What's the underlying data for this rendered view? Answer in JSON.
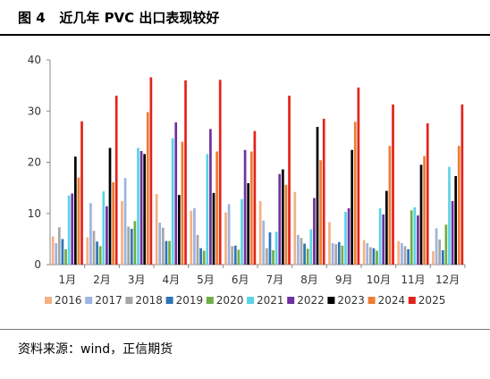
{
  "figure": {
    "label": "图 4",
    "title": "近几年 PVC 出口表现较好"
  },
  "source": "资料来源：wind，正信期货",
  "chart_data": {
    "type": "bar",
    "categories": [
      "1月",
      "2月",
      "3月",
      "4月",
      "5月",
      "6月",
      "7月",
      "8月",
      "9月",
      "10月",
      "11月",
      "12月"
    ],
    "ylim": [
      0,
      40
    ],
    "yticks": [
      0,
      10,
      20,
      30,
      40
    ],
    "grid": false,
    "legend_position": "bottom",
    "series": [
      {
        "name": "2016",
        "color": "#F4B183",
        "values": [
          5.5,
          5.3,
          12.4,
          13.8,
          10.5,
          10.2,
          12.4,
          14.2,
          8.3,
          4.8,
          4.6,
          2.6
        ]
      },
      {
        "name": "2017",
        "color": "#9DB3E0",
        "values": [
          4.2,
          12.0,
          16.9,
          8.2,
          11.0,
          11.8,
          8.6,
          5.8,
          4.2,
          4.2,
          4.2,
          7.1
        ]
      },
      {
        "name": "2018",
        "color": "#A6A6A6",
        "values": [
          7.3,
          6.6,
          7.4,
          7.2,
          5.8,
          3.6,
          3.2,
          5.2,
          4.0,
          3.4,
          3.6,
          4.9
        ]
      },
      {
        "name": "2019",
        "color": "#2E75B6",
        "values": [
          5.0,
          4.5,
          7.0,
          4.6,
          3.2,
          3.7,
          6.3,
          4.1,
          4.4,
          3.2,
          3.0,
          2.8
        ]
      },
      {
        "name": "2020",
        "color": "#70AD47",
        "values": [
          3.0,
          3.6,
          8.5,
          4.6,
          2.7,
          2.9,
          2.8,
          3.1,
          3.7,
          2.7,
          10.6,
          7.8
        ]
      },
      {
        "name": "2021",
        "color": "#5BD3E8",
        "values": [
          13.5,
          14.3,
          22.8,
          24.7,
          21.6,
          12.8,
          6.4,
          6.9,
          10.3,
          11.0,
          11.2,
          19.1
        ]
      },
      {
        "name": "2022",
        "color": "#7030A0",
        "values": [
          13.9,
          11.4,
          22.2,
          27.8,
          26.5,
          22.4,
          17.7,
          13.0,
          11.0,
          9.8,
          9.6,
          12.4
        ]
      },
      {
        "name": "2023",
        "color": "#000000",
        "values": [
          21.1,
          22.8,
          21.6,
          13.6,
          14.0,
          15.9,
          18.6,
          26.9,
          22.4,
          14.4,
          19.5,
          17.3
        ]
      },
      {
        "name": "2024",
        "color": "#ED7D31",
        "values": [
          17.0,
          16.1,
          29.8,
          24.0,
          22.1,
          22.1,
          15.6,
          20.4,
          27.9,
          23.2,
          21.2,
          23.2
        ]
      },
      {
        "name": "2025",
        "color": "#E3231B",
        "values": [
          28.0,
          33.0,
          36.6,
          36.0,
          36.1,
          26.1,
          33.0,
          28.5,
          34.6,
          31.3,
          27.6,
          31.3
        ]
      }
    ]
  }
}
